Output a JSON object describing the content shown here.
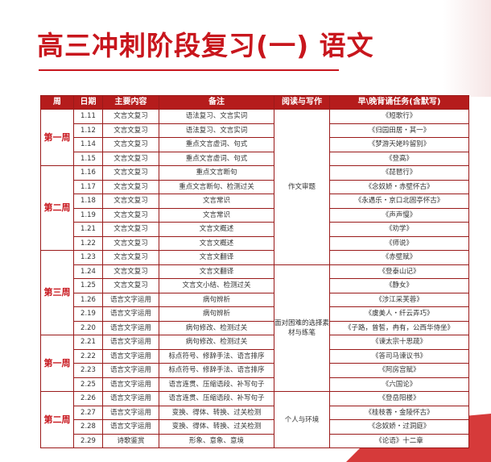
{
  "title": "高三冲刺阶段复习(一) 语文",
  "colors": {
    "accent": "#c8161d",
    "header_bg": "#b51c1c"
  },
  "headers": [
    "周",
    "日期",
    "主要内容",
    "备注",
    "阅读与写作",
    "早\\晚背诵任务(含默写)"
  ],
  "weeks": [
    "第一周",
    "第二周",
    "第三周",
    "第一周",
    "第二周"
  ],
  "reading": [
    "作文审题",
    "面对困难的选择素材与练笔",
    "个人与环境"
  ],
  "rows": [
    {
      "date": "1.11",
      "content": "文言文复习",
      "note": "语法复习、文言实词",
      "recite": "《短歌行》"
    },
    {
      "date": "1.12",
      "content": "文言文复习",
      "note": "语法复习、文言实词",
      "recite": "《归园田居・其一》"
    },
    {
      "date": "1.14",
      "content": "文言文复习",
      "note": "重点文言虚词、句式",
      "recite": "《梦游天姥吟留别》"
    },
    {
      "date": "1.15",
      "content": "文言文复习",
      "note": "重点文言虚词、句式",
      "recite": "《登高》"
    },
    {
      "date": "1.16",
      "content": "文言文复习",
      "note": "重点文言断句",
      "recite": "《琵琶行》"
    },
    {
      "date": "1.17",
      "content": "文言文复习",
      "note": "重点文言断句、检测过关",
      "recite": "《念奴娇・赤壁怀古》"
    },
    {
      "date": "1.18",
      "content": "文言文复习",
      "note": "文言常识",
      "recite": "《永遇乐・京口北固亭怀古》"
    },
    {
      "date": "1.19",
      "content": "文言文复习",
      "note": "文言常识",
      "recite": "《声声慢》"
    },
    {
      "date": "1.21",
      "content": "文言文复习",
      "note": "文言文概述",
      "recite": "《劝学》"
    },
    {
      "date": "1.22",
      "content": "文言文复习",
      "note": "文言文概述",
      "recite": "《师说》"
    },
    {
      "date": "1.23",
      "content": "文言文复习",
      "note": "文言文翻译",
      "recite": "《赤壁赋》"
    },
    {
      "date": "1.24",
      "content": "文言文复习",
      "note": "文言文翻译",
      "recite": "《登泰山记》"
    },
    {
      "date": "1.25",
      "content": "文言文复习",
      "note": "文言文小结、检测过关",
      "recite": "《静女》"
    },
    {
      "date": "1.26",
      "content": "语言文字运用",
      "note": "病句辨析",
      "recite": "《涉江采芙蓉》"
    },
    {
      "date": "2.19",
      "content": "语言文字运用",
      "note": "病句辨析",
      "recite": "《虞美人・纤云弄巧》"
    },
    {
      "date": "2.20",
      "content": "语言文字运用",
      "note": "病句修改、检测过关",
      "recite": "《子路，曾皙，冉有，公西华侍坐》"
    },
    {
      "date": "2.21",
      "content": "语言文字运用",
      "note": "病句修改、检测过关",
      "recite": "《谏太宗十思疏》"
    },
    {
      "date": "2.22",
      "content": "语言文字运用",
      "note": "标点符号、修辞手法、语言排序",
      "recite": "《答司马谏议书》"
    },
    {
      "date": "2.23",
      "content": "语言文字运用",
      "note": "标点符号、修辞手法、语言排序",
      "recite": "《阿房宫赋》"
    },
    {
      "date": "2.25",
      "content": "语言文字运用",
      "note": "语言连贯、压缩语段、补写句子",
      "recite": "《六国论》"
    },
    {
      "date": "2.26",
      "content": "语言文字运用",
      "note": "语言连贯、压缩语段、补写句子",
      "recite": "《登岳阳楼》"
    },
    {
      "date": "2.27",
      "content": "语言文字运用",
      "note": "变换、得体、转换、过关检测",
      "recite": "《桂枝香・金陵怀古》"
    },
    {
      "date": "2.28",
      "content": "语言文字运用",
      "note": "变换、得体、转换、过关检测",
      "recite": "《念奴娇・过洞庭》"
    },
    {
      "date": "2.29",
      "content": "诗歌鉴赏",
      "note": "形象、意象、意境",
      "recite": "《论语》十二章"
    }
  ]
}
